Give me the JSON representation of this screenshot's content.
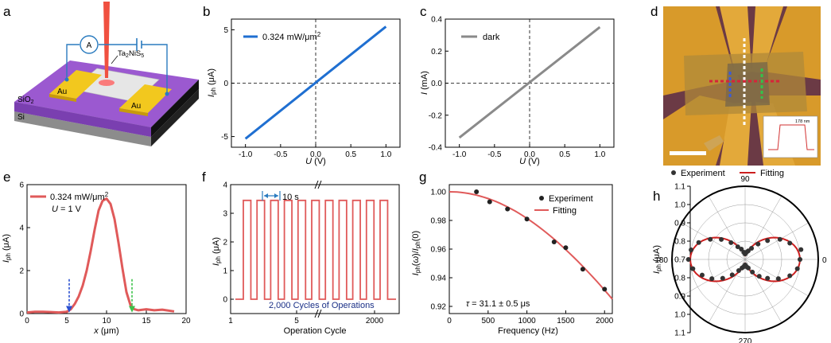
{
  "chart_data": [
    {
      "panel": "a",
      "type": "diagram",
      "labels": {
        "ammeter": "A",
        "material": "Ta2NiS5",
        "material_base": "Ta",
        "material_sub1": "2",
        "material_mid": "NiS",
        "material_sub2": "5",
        "electrode_left": "Au",
        "electrode_right": "Au",
        "oxide": "SiO2",
        "oxide_base": "SiO",
        "oxide_sub": "2",
        "substrate": "Si"
      }
    },
    {
      "panel": "b",
      "type": "line",
      "legend": "0.324 mW/μm²",
      "legend_base": "0.324 mW/μm",
      "legend_sup": "2",
      "ylabel_base": "I",
      "ylabel_sub": "ph",
      "ylabel_unit": " (μA)",
      "xlabel_base": "U",
      "xlabel_unit": " (V)",
      "xlim": [
        -1.2,
        1.2
      ],
      "ylim": [
        -6,
        6
      ],
      "xticks": [
        -1.0,
        -0.5,
        0.0,
        0.5,
        1.0
      ],
      "xtick_labels": [
        "-1.0",
        "-0.5",
        "0.0",
        "0.5",
        "1.0"
      ],
      "yticks": [
        -5,
        0,
        5
      ],
      "ytick_labels": [
        "-5",
        "0",
        "5"
      ],
      "x": [
        -1.0,
        1.0
      ],
      "y": [
        -5.2,
        5.3
      ],
      "color": "#1f6fd1"
    },
    {
      "panel": "c",
      "type": "line",
      "legend": "dark",
      "ylabel_base": "I",
      "ylabel_unit": " (mA)",
      "xlabel_base": "U",
      "xlabel_unit": " (V)",
      "xlim": [
        -1.2,
        1.2
      ],
      "ylim": [
        -0.4,
        0.4
      ],
      "xticks": [
        -1.0,
        -0.5,
        0.0,
        0.5,
        1.0
      ],
      "xtick_labels": [
        "-1.0",
        "-0.5",
        "0.0",
        "0.5",
        "1.0"
      ],
      "yticks": [
        -0.4,
        -0.2,
        0.0,
        0.2,
        0.4
      ],
      "ytick_labels": [
        "-0.4",
        "-0.2",
        "0.0",
        "0.2",
        "0.4"
      ],
      "x": [
        -1.0,
        1.0
      ],
      "y": [
        -0.34,
        0.35
      ],
      "color": "#8a8a8a"
    },
    {
      "panel": "d",
      "type": "image",
      "inset_label": "178 nm"
    },
    {
      "panel": "e",
      "type": "line",
      "legend": "0.324 mW/μm²",
      "legend_base": "0.324 mW/μm",
      "legend_sup": "2",
      "legend2_var": "U",
      "legend2_val": " = 1 V",
      "ylabel_base": "I",
      "ylabel_sub": "ph",
      "ylabel_unit": " (μA)",
      "xlabel_base": "x",
      "xlabel_unit": " (μm)",
      "xlim": [
        0,
        20
      ],
      "ylim": [
        0,
        6
      ],
      "xticks": [
        0,
        5,
        10,
        15,
        20
      ],
      "xtick_labels": [
        "0",
        "5",
        "10",
        "15",
        "20"
      ],
      "yticks": [
        0,
        2,
        4,
        6
      ],
      "ytick_labels": [
        "0",
        "2",
        "4",
        "6"
      ],
      "x": [
        0,
        1,
        2,
        3,
        4,
        5,
        5.5,
        6,
        6.5,
        7,
        7.5,
        8,
        8.5,
        9,
        9.5,
        10,
        10.5,
        11,
        11.5,
        12,
        12.5,
        13,
        13.5,
        14,
        15,
        16,
        17,
        18.5
      ],
      "y": [
        0.05,
        0.08,
        0.08,
        0.07,
        0.05,
        0.08,
        0.2,
        0.45,
        0.8,
        1.3,
        2.0,
        2.9,
        3.9,
        4.8,
        5.25,
        5.35,
        5.1,
        4.4,
        3.3,
        2.1,
        1.0,
        0.4,
        0.2,
        0.15,
        0.2,
        0.15,
        0.18,
        0.1
      ],
      "markers_x": [
        5.3,
        13.2
      ],
      "color": "#e05a5a"
    },
    {
      "panel": "f",
      "type": "line",
      "annotation_interval": "10 s",
      "annotation_cycles": "2,000 Cycles of Operations",
      "ylabel_base": "I",
      "ylabel_sub": "ph",
      "ylabel_unit": " (μA)",
      "xlabel": "Operation Cycle",
      "ylim": [
        -0.5,
        4
      ],
      "xtick_labels": [
        "1",
        "5",
        "2000"
      ],
      "yticks": [
        0,
        1,
        2,
        3,
        4
      ],
      "ytick_labels": [
        "0",
        "1",
        "2",
        "3",
        "4"
      ],
      "on_level": 3.45,
      "off_level": 0.0,
      "cycles": 11,
      "color": "#e05a5a"
    },
    {
      "panel": "g",
      "type": "scatter",
      "legend": [
        "Experiment",
        "Fitting"
      ],
      "annotation_sym": "τ",
      "annotation_val": " = 31.1 ± 0.5 μs",
      "ylabel": "Iph(ω)/Iph(0)",
      "xlabel": "Frequency (Hz)",
      "xlim": [
        0,
        2100
      ],
      "ylim": [
        0.915,
        1.005
      ],
      "xticks": [
        0,
        500,
        1000,
        1500,
        2000
      ],
      "xtick_labels": [
        "0",
        "500",
        "1000",
        "1500",
        "2000"
      ],
      "yticks": [
        0.92,
        0.94,
        0.96,
        0.98,
        1.0
      ],
      "ytick_labels": [
        "0.92",
        "0.94",
        "0.96",
        "0.98",
        "1.00"
      ],
      "x": [
        350,
        520,
        750,
        1000,
        1350,
        1500,
        1720,
        2000
      ],
      "y": [
        1.0,
        0.993,
        0.988,
        0.981,
        0.965,
        0.961,
        0.946,
        0.932
      ],
      "tau_us": 31.1,
      "colors": {
        "points": "#222222",
        "fit": "#e05a5a"
      }
    },
    {
      "panel": "h",
      "type": "polar",
      "legend": [
        "Experiment",
        "Fitting"
      ],
      "ylabel_base": "I",
      "ylabel_sub": "ph",
      "ylabel_unit": " (μA)",
      "angle_labels": [
        "90",
        "0",
        "270",
        "180"
      ],
      "r_tick_labels_upper": [
        "1.1",
        "1.0",
        "0.9",
        "0.8",
        "0.7"
      ],
      "r_tick_labels_lower": [
        "0.7",
        "0.8",
        "0.9",
        "1.0",
        "1.1"
      ],
      "rlim": [
        0.7,
        1.1
      ],
      "fit": {
        "a": 0.72,
        "b": 1.0,
        "form": "a + (b - a) * cos^2(theta)"
      },
      "angles_deg": [
        0,
        10,
        20,
        30,
        40,
        50,
        60,
        70,
        80,
        90,
        100,
        110,
        120,
        130,
        140,
        150,
        160,
        170,
        180,
        190,
        200,
        210,
        220,
        230,
        240,
        250,
        260,
        270,
        280,
        290,
        300,
        310,
        320,
        330,
        340,
        350
      ],
      "values": [
        1.0,
        1.01,
        0.96,
        0.92,
        0.86,
        0.81,
        0.77,
        0.75,
        0.74,
        0.73,
        0.74,
        0.76,
        0.78,
        0.82,
        0.87,
        0.92,
        0.97,
        1.0,
        1.01,
        0.99,
        0.95,
        0.91,
        0.86,
        0.81,
        0.77,
        0.75,
        0.74,
        0.73,
        0.74,
        0.75,
        0.78,
        0.82,
        0.86,
        0.91,
        0.96,
        0.99
      ],
      "colors": {
        "points": "#333333",
        "fit": "#cc1f1f"
      }
    }
  ]
}
